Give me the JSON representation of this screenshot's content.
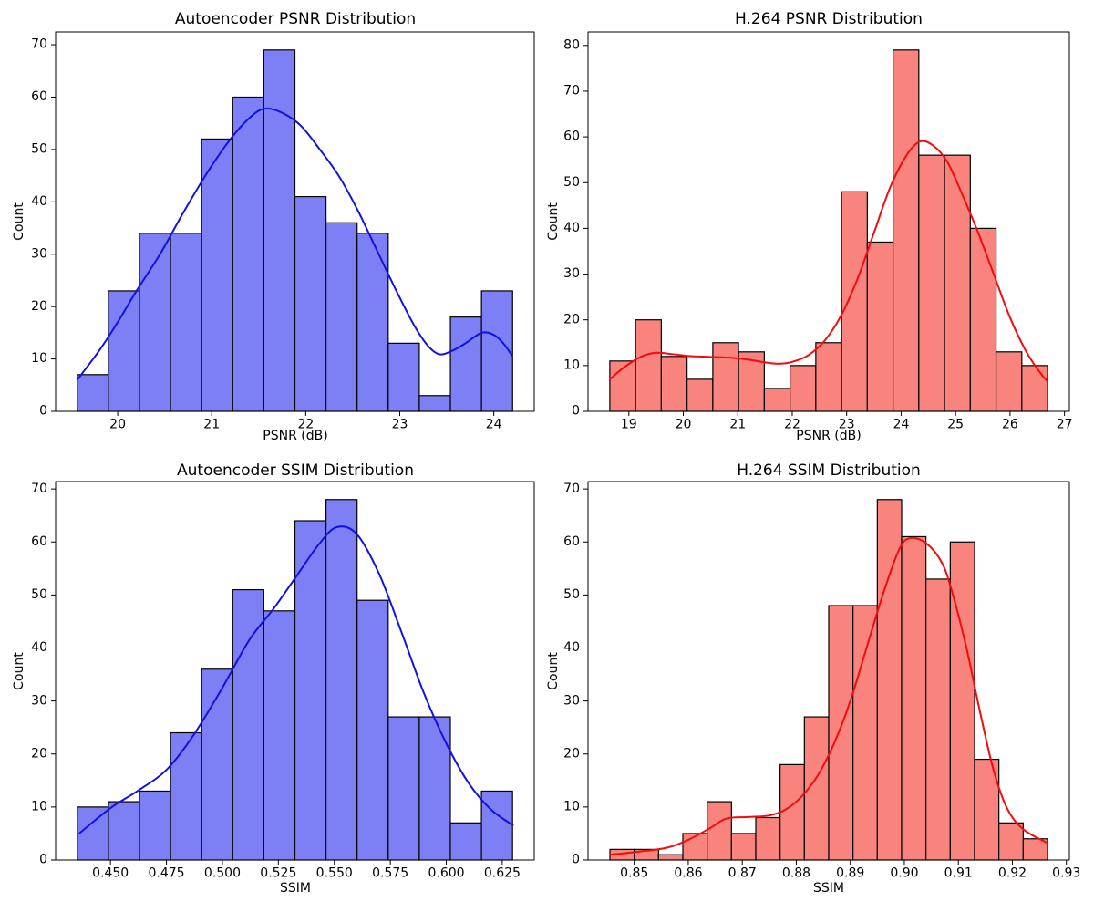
{
  "figure": {
    "background": "#ffffff",
    "text_color": "#000000"
  },
  "chart_data": [
    {
      "type": "histogram+kde",
      "title": "Autoencoder PSNR Distribution",
      "xlabel": "PSNR (dB)",
      "ylabel": "Count",
      "bar_fill": "#7d80f4",
      "bar_edge": "#000000",
      "line_color": "#1212e0",
      "bin_start": 19.57,
      "bin_width": 0.3307,
      "values": [
        7,
        23,
        34,
        34,
        52,
        60,
        69,
        41,
        36,
        34,
        13,
        3,
        18,
        23
      ],
      "xlim": [
        19.34,
        24.43
      ],
      "ylim": [
        0,
        72.45
      ],
      "xticks": [
        20,
        21,
        22,
        23,
        24
      ],
      "xtick_labels": [
        "20",
        "21",
        "22",
        "23",
        "24"
      ],
      "yticks": [
        0,
        10,
        20,
        30,
        40,
        50,
        60,
        70
      ],
      "grid": false,
      "legend": "none",
      "kde": [
        [
          19.57,
          6
        ],
        [
          19.8,
          11.5
        ],
        [
          20.0,
          17
        ],
        [
          20.2,
          23
        ],
        [
          20.45,
          30
        ],
        [
          20.7,
          38
        ],
        [
          20.95,
          45.5
        ],
        [
          21.2,
          52
        ],
        [
          21.4,
          56
        ],
        [
          21.56,
          57.8
        ],
        [
          21.75,
          57
        ],
        [
          21.95,
          54.5
        ],
        [
          22.15,
          50
        ],
        [
          22.35,
          45
        ],
        [
          22.55,
          38.5
        ],
        [
          22.75,
          31
        ],
        [
          22.95,
          23.5
        ],
        [
          23.15,
          16.5
        ],
        [
          23.3,
          12.5
        ],
        [
          23.42,
          10.9
        ],
        [
          23.55,
          11.5
        ],
        [
          23.7,
          13
        ],
        [
          23.87,
          15
        ],
        [
          24.0,
          14.6
        ],
        [
          24.1,
          13
        ],
        [
          24.2,
          10.5
        ]
      ]
    },
    {
      "type": "histogram+kde",
      "title": "H.264 PSNR Distribution",
      "xlabel": "PSNR (dB)",
      "ylabel": "Count",
      "bar_fill": "#f9837d",
      "bar_edge": "#000000",
      "line_color": "#f40b0b",
      "bin_start": 18.65,
      "bin_width": 0.4729,
      "values": [
        11,
        20,
        12,
        7,
        15,
        13,
        5,
        10,
        15,
        48,
        37,
        79,
        56,
        56,
        40,
        13,
        10
      ],
      "xlim": [
        18.25,
        27.09
      ],
      "ylim": [
        0,
        82.95
      ],
      "xticks": [
        19,
        20,
        21,
        22,
        23,
        24,
        25,
        26,
        27
      ],
      "xtick_labels": [
        "19",
        "20",
        "21",
        "22",
        "23",
        "24",
        "25",
        "26",
        "27"
      ],
      "yticks": [
        0,
        10,
        20,
        30,
        40,
        50,
        60,
        70,
        80
      ],
      "grid": false,
      "legend": "none",
      "kde": [
        [
          18.65,
          7
        ],
        [
          18.9,
          9.5
        ],
        [
          19.2,
          11.8
        ],
        [
          19.5,
          12.8
        ],
        [
          19.8,
          12.5
        ],
        [
          20.1,
          12.1
        ],
        [
          20.5,
          11.9
        ],
        [
          20.9,
          11.7
        ],
        [
          21.2,
          11.3
        ],
        [
          21.5,
          10.7
        ],
        [
          21.75,
          10.4
        ],
        [
          22.0,
          10.8
        ],
        [
          22.3,
          12.3
        ],
        [
          22.6,
          15.5
        ],
        [
          22.9,
          21
        ],
        [
          23.2,
          29
        ],
        [
          23.5,
          39
        ],
        [
          23.8,
          49
        ],
        [
          24.1,
          56
        ],
        [
          24.35,
          59
        ],
        [
          24.6,
          58
        ],
        [
          24.85,
          54.5
        ],
        [
          25.1,
          48
        ],
        [
          25.4,
          39.5
        ],
        [
          25.7,
          30
        ],
        [
          26.0,
          20.5
        ],
        [
          26.3,
          13
        ],
        [
          26.55,
          8.5
        ],
        [
          26.69,
          6.5
        ]
      ]
    },
    {
      "type": "histogram+kde",
      "title": "Autoencoder SSIM Distribution",
      "xlabel": "SSIM",
      "ylabel": "Count",
      "bar_fill": "#7d80f4",
      "bar_edge": "#000000",
      "line_color": "#1212e0",
      "bin_start": 0.4352,
      "bin_width": 0.013886,
      "values": [
        10,
        11,
        13,
        24,
        36,
        51,
        47,
        64,
        68,
        49,
        27,
        27,
        7,
        13
      ],
      "xlim": [
        0.4255,
        0.6393
      ],
      "ylim": [
        0,
        71.4
      ],
      "xticks": [
        0.45,
        0.475,
        0.5,
        0.525,
        0.55,
        0.575,
        0.6,
        0.625
      ],
      "xtick_labels": [
        "0.450",
        "0.475",
        "0.500",
        "0.525",
        "0.550",
        "0.575",
        "0.600",
        "0.625"
      ],
      "yticks": [
        0,
        10,
        20,
        30,
        40,
        50,
        60,
        70
      ],
      "grid": false,
      "legend": "none",
      "kde": [
        [
          0.436,
          5
        ],
        [
          0.45,
          9.8
        ],
        [
          0.462,
          13
        ],
        [
          0.475,
          17
        ],
        [
          0.487,
          23.5
        ],
        [
          0.5,
          32.5
        ],
        [
          0.512,
          41.5
        ],
        [
          0.523,
          47.5
        ],
        [
          0.533,
          53.5
        ],
        [
          0.543,
          59.5
        ],
        [
          0.551,
          62.8
        ],
        [
          0.56,
          61.5
        ],
        [
          0.57,
          54
        ],
        [
          0.58,
          43
        ],
        [
          0.59,
          31.5
        ],
        [
          0.6,
          22
        ],
        [
          0.61,
          14.5
        ],
        [
          0.62,
          9.5
        ],
        [
          0.63,
          6.5
        ]
      ]
    },
    {
      "type": "histogram+kde",
      "title": "H.264 SSIM Distribution",
      "xlabel": "SSIM",
      "ylabel": "Count",
      "bar_fill": "#f9837d",
      "bar_edge": "#000000",
      "line_color": "#f40b0b",
      "bin_start": 0.8455,
      "bin_width": 0.0045,
      "values": [
        2,
        2,
        1,
        5,
        11,
        5,
        8,
        18,
        27,
        48,
        48,
        68,
        61,
        53,
        60,
        19,
        7,
        4
      ],
      "xlim": [
        0.84145,
        0.93055
      ],
      "ylim": [
        0,
        71.4
      ],
      "xticks": [
        0.85,
        0.86,
        0.87,
        0.88,
        0.89,
        0.9,
        0.91,
        0.92,
        0.93
      ],
      "xtick_labels": [
        "0.85",
        "0.86",
        "0.87",
        "0.88",
        "0.89",
        "0.90",
        "0.91",
        "0.92",
        "0.93"
      ],
      "yticks": [
        0,
        10,
        20,
        30,
        40,
        50,
        60,
        70
      ],
      "grid": false,
      "legend": "none",
      "kde": [
        [
          0.8455,
          1
        ],
        [
          0.851,
          1.6
        ],
        [
          0.856,
          2.3
        ],
        [
          0.86,
          3.8
        ],
        [
          0.864,
          6
        ],
        [
          0.867,
          7.8
        ],
        [
          0.871,
          8.1
        ],
        [
          0.875,
          8.4
        ],
        [
          0.878,
          9.5
        ],
        [
          0.881,
          12
        ],
        [
          0.884,
          16
        ],
        [
          0.887,
          22
        ],
        [
          0.89,
          30
        ],
        [
          0.893,
          40
        ],
        [
          0.896,
          50
        ],
        [
          0.899,
          58.5
        ],
        [
          0.901,
          60.7
        ],
        [
          0.904,
          59.8
        ],
        [
          0.907,
          56
        ],
        [
          0.909,
          50
        ],
        [
          0.9115,
          40
        ],
        [
          0.914,
          28
        ],
        [
          0.9165,
          17
        ],
        [
          0.919,
          9.8
        ],
        [
          0.922,
          5.8
        ],
        [
          0.9265,
          3.2
        ]
      ]
    }
  ]
}
